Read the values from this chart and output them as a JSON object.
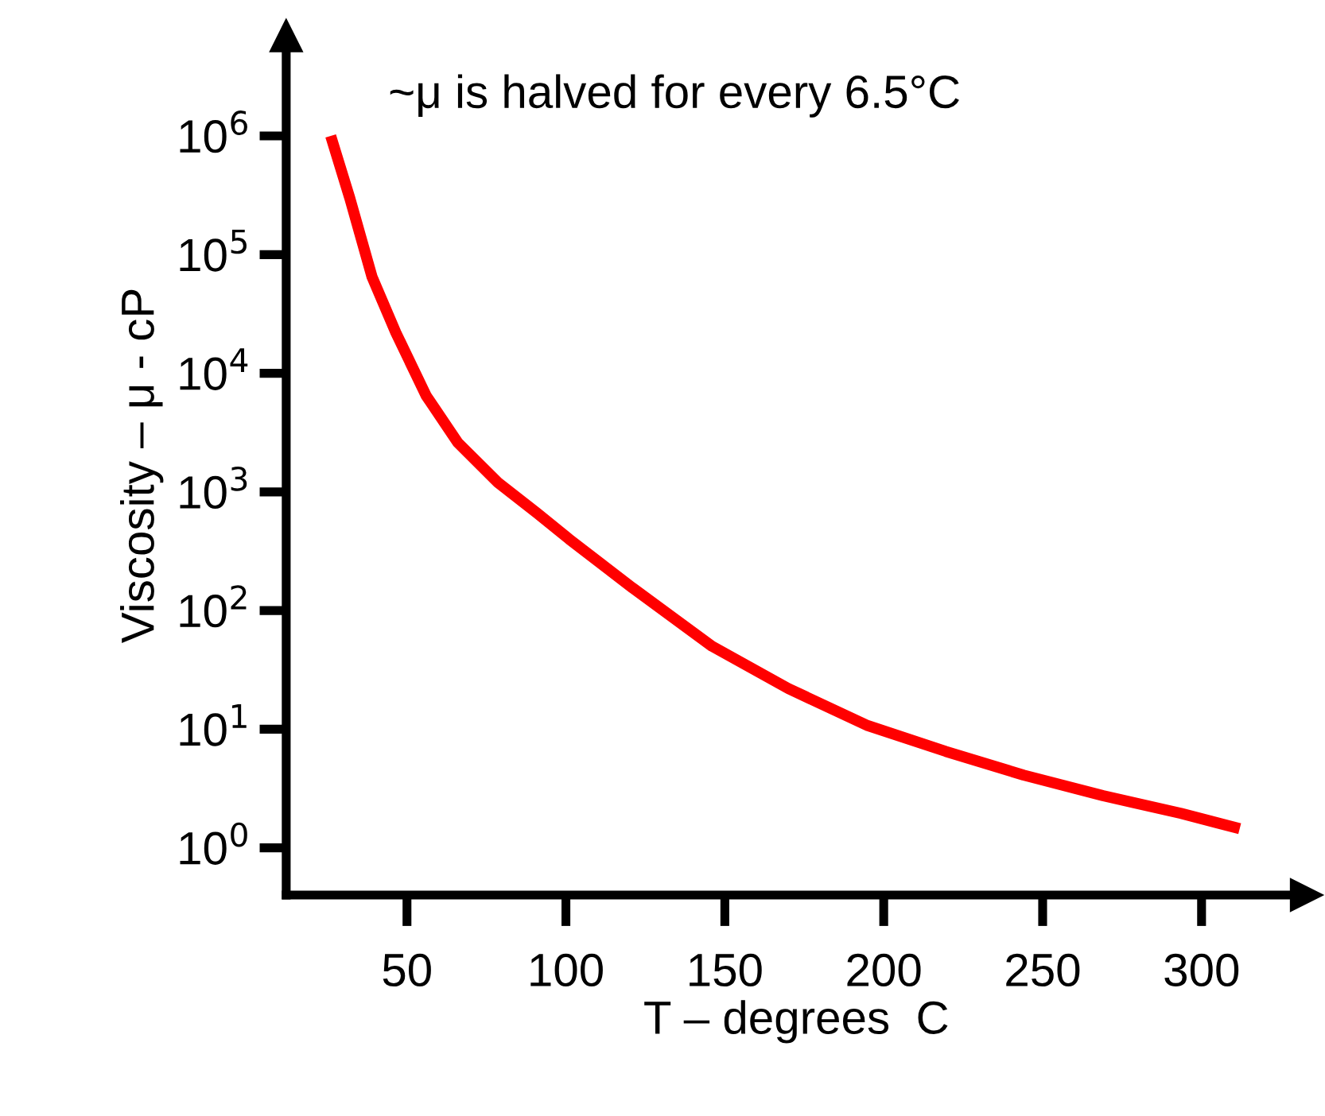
{
  "chart_data": {
    "type": "line",
    "xlabel": "T – degrees  C",
    "ylabel": "Viscosity – μ - cP",
    "annotations": [
      "~μ is halved for every 6.5°C"
    ],
    "x": [
      26,
      32,
      39,
      46.5,
      56,
      66,
      78.6,
      91,
      101,
      121,
      146,
      170,
      195,
      219.5,
      244,
      269,
      293.5,
      312
    ],
    "series": [
      {
        "color": "#ff0000",
        "values": [
          1000000,
          300000,
          65000,
          22000,
          6500,
          2600,
          1200,
          660,
          400,
          155,
          50,
          22,
          10.7,
          6.5,
          4.1,
          2.75,
          1.95,
          1.45
        ]
      }
    ],
    "log": "y",
    "xlim": [
      12,
      333
    ],
    "ylim": [
      0.4,
      7000000
    ],
    "xticks": [
      50,
      100,
      150,
      200,
      250,
      300
    ],
    "yticks": [
      {
        "value": 1,
        "label": "10$^{0}$"
      },
      {
        "value": 10,
        "label": "10$^{1}$"
      },
      {
        "value": 100,
        "label": "10$^{2}$"
      },
      {
        "value": 1000,
        "label": "10$^{3}$"
      },
      {
        "value": 10000,
        "label": "10$^{4}$"
      },
      {
        "value": 100000,
        "label": "10$^{5}$"
      },
      {
        "value": 1000000,
        "label": "10$^{6}$"
      }
    ],
    "grid": false,
    "legend": false,
    "marker": "none",
    "line_style": "solid"
  }
}
